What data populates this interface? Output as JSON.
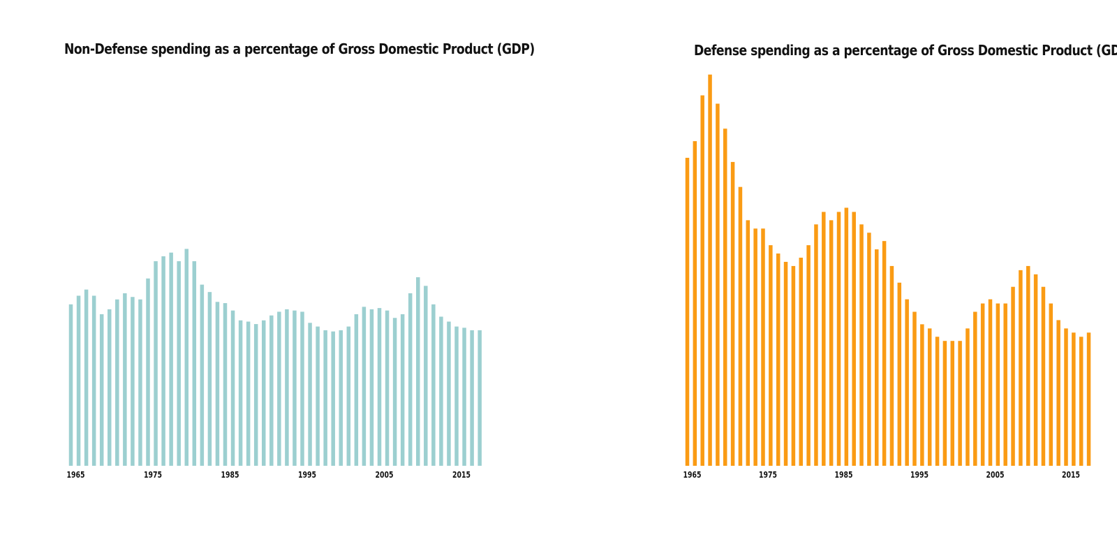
{
  "chart_data": [
    {
      "type": "bar",
      "title": "Non-Defense spending as a percentage of Gross Domestic Product (GDP)",
      "color": "#9ccfd0",
      "x": [
        1965,
        1966,
        1967,
        1968,
        1969,
        1970,
        1971,
        1972,
        1973,
        1974,
        1975,
        1976,
        1977,
        1978,
        1979,
        1980,
        1981,
        1982,
        1983,
        1984,
        1985,
        1986,
        1987,
        1988,
        1989,
        1990,
        1991,
        1992,
        1993,
        1994,
        1995,
        1996,
        1997,
        1998,
        1999,
        2000,
        2001,
        2002,
        2003,
        2004,
        2005,
        2006,
        2007,
        2008,
        2009,
        2010,
        2011,
        2012,
        2013,
        2014,
        2015,
        2016,
        2017,
        2018
      ],
      "tick_labels": [
        "1965",
        "1975",
        "1985",
        "1995",
        "2005",
        "2015"
      ],
      "values": [
        13.1,
        13.8,
        14.3,
        13.8,
        12.3,
        12.7,
        13.5,
        14.0,
        13.7,
        13.5,
        15.2,
        16.6,
        17.0,
        17.3,
        16.6,
        17.6,
        16.6,
        14.7,
        14.1,
        13.3,
        13.2,
        12.6,
        11.8,
        11.7,
        11.5,
        11.8,
        12.2,
        12.5,
        12.7,
        12.6,
        12.5,
        11.6,
        11.3,
        11.0,
        10.9,
        11.0,
        11.3,
        12.3,
        12.9,
        12.7,
        12.8,
        12.6,
        12.0,
        12.3,
        14.0,
        15.3,
        14.6,
        13.1,
        12.1,
        11.7,
        11.3,
        11.2,
        11.0,
        11.0
      ],
      "ylim": [
        0,
        34
      ],
      "grid": false
    },
    {
      "type": "bar",
      "title": "Defense spending as a percentage of Gross Domestic Product (GDP)",
      "color": "#fa9b14",
      "x": [
        1965,
        1966,
        1967,
        1968,
        1969,
        1970,
        1971,
        1972,
        1973,
        1974,
        1975,
        1976,
        1977,
        1978,
        1979,
        1980,
        1981,
        1982,
        1983,
        1984,
        1985,
        1986,
        1987,
        1988,
        1989,
        1990,
        1991,
        1992,
        1993,
        1994,
        1995,
        1996,
        1997,
        1998,
        1999,
        2000,
        2001,
        2002,
        2003,
        2004,
        2005,
        2006,
        2007,
        2008,
        2009,
        2010,
        2011,
        2012,
        2013,
        2014,
        2015,
        2016,
        2017,
        2018
      ],
      "tick_labels": [
        "1965",
        "1975",
        "1985",
        "1995",
        "2005",
        "2015"
      ],
      "values": [
        7.4,
        7.8,
        8.9,
        9.4,
        8.7,
        8.1,
        7.3,
        6.7,
        5.9,
        5.7,
        5.7,
        5.3,
        5.1,
        4.9,
        4.8,
        5.0,
        5.3,
        5.8,
        6.1,
        5.9,
        6.1,
        6.2,
        6.1,
        5.8,
        5.6,
        5.2,
        5.4,
        4.8,
        4.4,
        4.0,
        3.7,
        3.4,
        3.3,
        3.1,
        3.0,
        3.0,
        3.0,
        3.3,
        3.7,
        3.9,
        4.0,
        3.9,
        3.9,
        4.3,
        4.7,
        4.8,
        4.6,
        4.3,
        3.9,
        3.5,
        3.3,
        3.2,
        3.1,
        3.2
      ],
      "ylim": [
        0,
        10
      ],
      "grid": false
    }
  ]
}
